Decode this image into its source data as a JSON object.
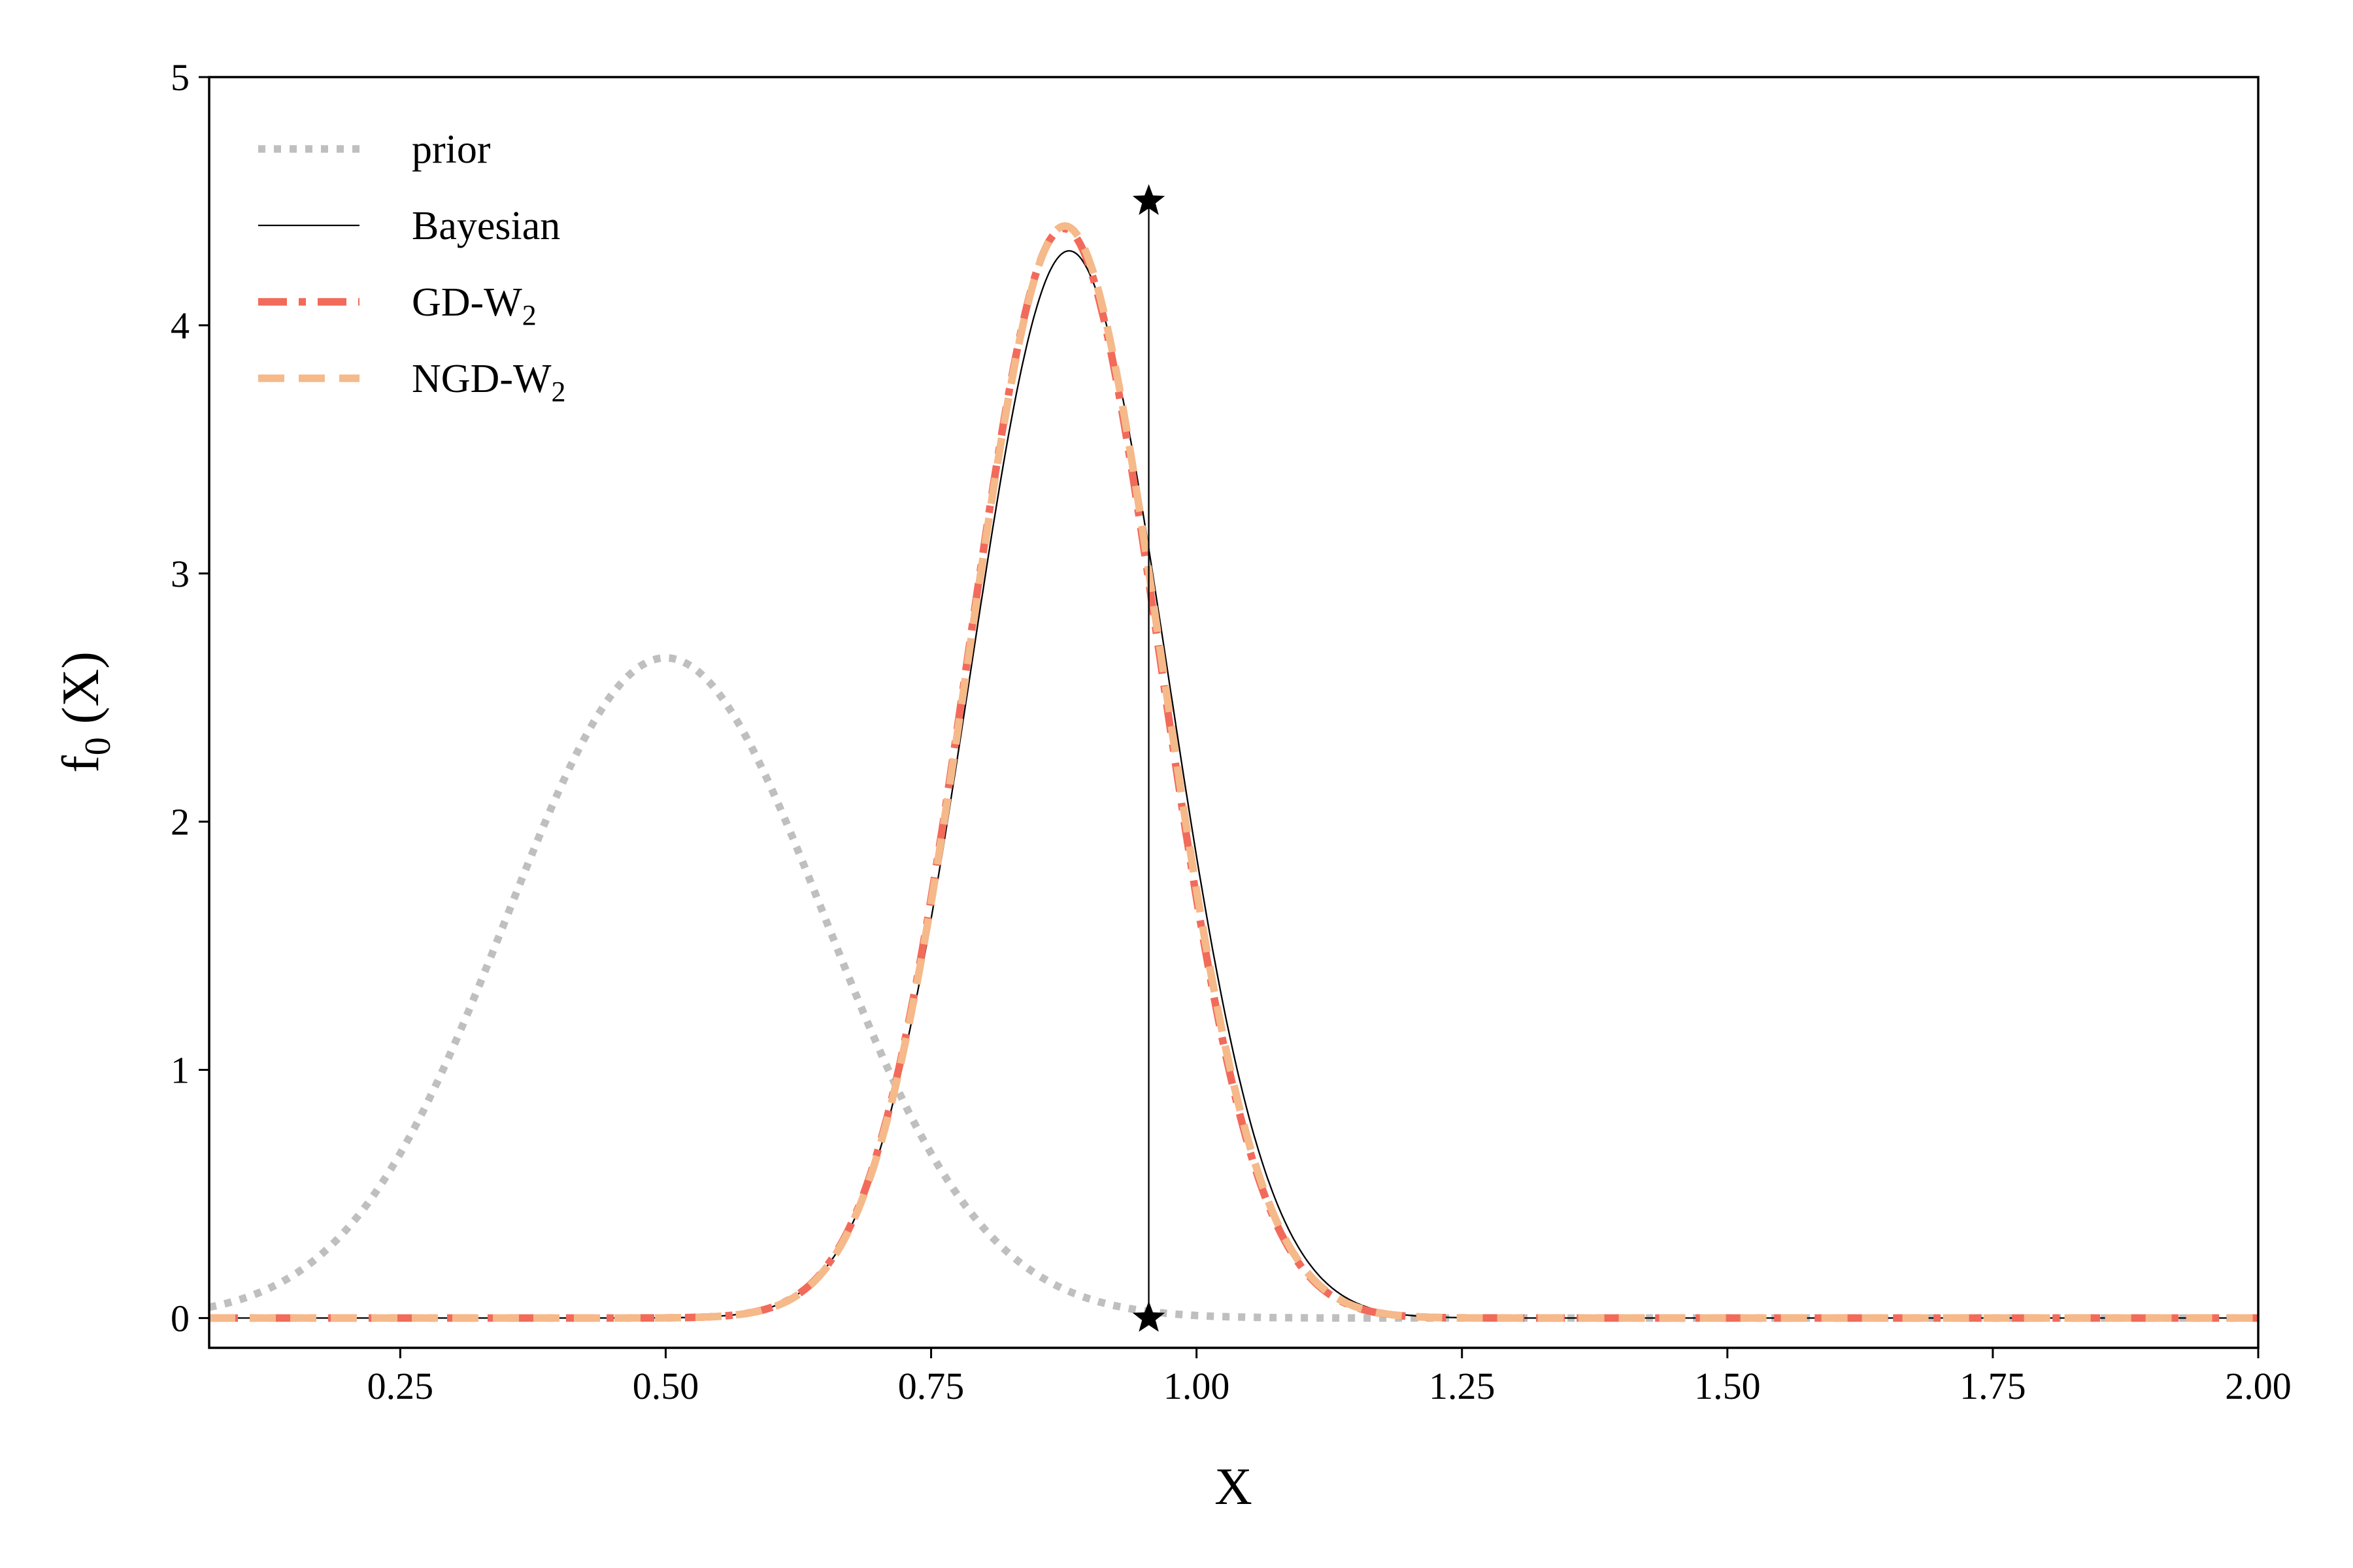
{
  "chart_data": {
    "type": "line",
    "title": "",
    "xlabel": "X",
    "ylabel": {
      "main": "f",
      "sub": "0",
      "rest": " (X)"
    },
    "xlim": [
      0.07,
      2.0
    ],
    "ylim": [
      -0.12,
      5.0
    ],
    "xticks": [
      0.25,
      0.5,
      0.75,
      1.0,
      1.25,
      1.5,
      1.75,
      2.0
    ],
    "xtick_labels": [
      "0.25",
      "0.50",
      "0.75",
      "1.00",
      "1.25",
      "1.50",
      "1.75",
      "2.00"
    ],
    "yticks": [
      0,
      1,
      2,
      3,
      4,
      5
    ],
    "ytick_labels": [
      "0",
      "1",
      "2",
      "3",
      "4",
      "5"
    ],
    "grid": false,
    "legend_position": "top-left",
    "series": [
      {
        "name": "prior",
        "label_main": "prior",
        "label_sub": "",
        "color": "#bfbfbf",
        "style": "dotted",
        "width": 11.5,
        "gaussian": {
          "mean": 0.5,
          "sd": 0.15,
          "peak": 2.66
        }
      },
      {
        "name": "Bayesian",
        "label_main": "Bayesian",
        "label_sub": "",
        "color": "#000000",
        "style": "solid",
        "width": 2.3,
        "gaussian": {
          "mean": 0.88,
          "sd": 0.0927,
          "peak": 4.3
        }
      },
      {
        "name": "GD-W2",
        "label_main": "GD-W",
        "label_sub": "2",
        "color": "#f26a5a",
        "style": "dashdot",
        "width": 11.5,
        "gaussian": {
          "mean": 0.875,
          "sd": 0.0905,
          "peak": 4.39
        }
      },
      {
        "name": "NGD-W2",
        "label_main": "NGD-W",
        "label_sub": "2",
        "color": "#f5b98a",
        "style": "dashed",
        "width": 11.5,
        "gaussian": {
          "mean": 0.876,
          "sd": 0.0906,
          "peak": 4.4
        }
      }
    ],
    "observation": {
      "x": 0.955,
      "y_low": 0.0,
      "y_high": 4.5,
      "marker": "star",
      "color": "#000000"
    }
  }
}
